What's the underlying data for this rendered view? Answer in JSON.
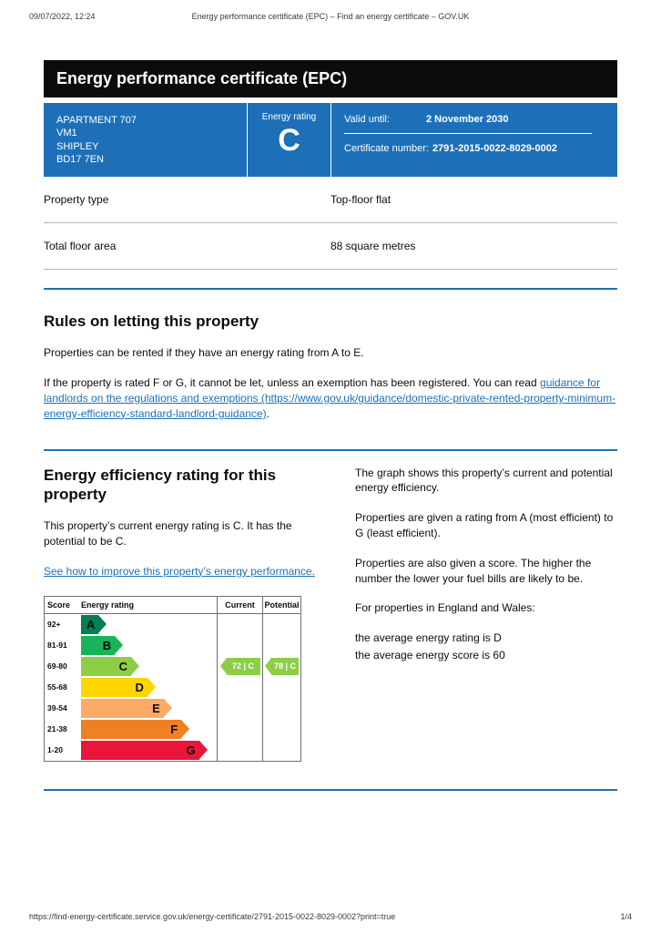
{
  "print_header": {
    "datetime": "09/07/2022, 12:24",
    "title": "Energy performance certificate (EPC) – Find an energy certificate – GOV.UK"
  },
  "banner": {
    "title": "Energy performance certificate (EPC)"
  },
  "summary": {
    "address_lines": [
      "APARTMENT 707",
      "VM1",
      "SHIPLEY",
      "BD17 7EN"
    ],
    "energy_rating_label": "Energy rating",
    "energy_rating": "C",
    "valid_until_label": "Valid until:",
    "valid_until": "2 November 2030",
    "certificate_number_label": "Certificate number:",
    "certificate_number": "2791-2015-0022-8029-0002"
  },
  "property_details": [
    {
      "label": "Property type",
      "value": "Top-floor flat"
    },
    {
      "label": "Total floor area",
      "value": "88 square metres"
    }
  ],
  "rules_section": {
    "heading": "Rules on letting this property",
    "para1": "Properties can be rented if they have an energy rating from A to E.",
    "para2_before_link": "If the property is rated F or G, it cannot be let, unless an exemption has been registered. You can read",
    "link_text": "guidance for landlords on the regulations and exemptions (https://www.gov.uk/guidance/domestic-private-rented-property-minimum-energy-efficiency-standard-landlord-guidance)",
    "para2_after_link": "."
  },
  "rating_section": {
    "heading": "Energy efficiency rating for this property",
    "para1": "This property’s current energy rating is C. It has the potential to be C.",
    "link_text": "See how to improve this property’s energy performance."
  },
  "chart_data": {
    "type": "bar",
    "orientation": "horizontal",
    "title": "Energy efficiency rating",
    "columns": [
      "Score",
      "Energy rating",
      "Current",
      "Potential"
    ],
    "bands": [
      {
        "score_range": "92+",
        "letter": "A",
        "color": "#008054",
        "width_pct": 19
      },
      {
        "score_range": "81-91",
        "letter": "B",
        "color": "#19b459",
        "width_pct": 31
      },
      {
        "score_range": "69-80",
        "letter": "C",
        "color": "#8dce46",
        "width_pct": 43
      },
      {
        "score_range": "55-68",
        "letter": "D",
        "color": "#ffd500",
        "width_pct": 55
      },
      {
        "score_range": "39-54",
        "letter": "E",
        "color": "#fcaa65",
        "width_pct": 67
      },
      {
        "score_range": "21-38",
        "letter": "F",
        "color": "#ef8023",
        "width_pct": 80
      },
      {
        "score_range": "1-20",
        "letter": "G",
        "color": "#e9153b",
        "width_pct": 93
      }
    ],
    "current": {
      "label": "72 | C",
      "score": 72,
      "letter": "C",
      "band_index": 2,
      "color": "#8dce46"
    },
    "potential": {
      "label": "78 | C",
      "score": 78,
      "letter": "C",
      "band_index": 2,
      "color": "#8dce46"
    }
  },
  "side_text": {
    "para1": "The graph shows this property’s current and potential energy efficiency.",
    "para2": "Properties are given a rating from A (most efficient) to G (least efficient).",
    "para3": "Properties are also given a score. The higher the number the lower your fuel bills are likely to be.",
    "para4": "For properties in England and Wales:",
    "para5": "the average energy rating is D",
    "para6": "the average energy score is 60"
  },
  "footer": {
    "url": "https://find-energy-certificate.service.gov.uk/energy-certificate/2791-2015-0022-8029-0002?print=true",
    "page": "1/4"
  }
}
